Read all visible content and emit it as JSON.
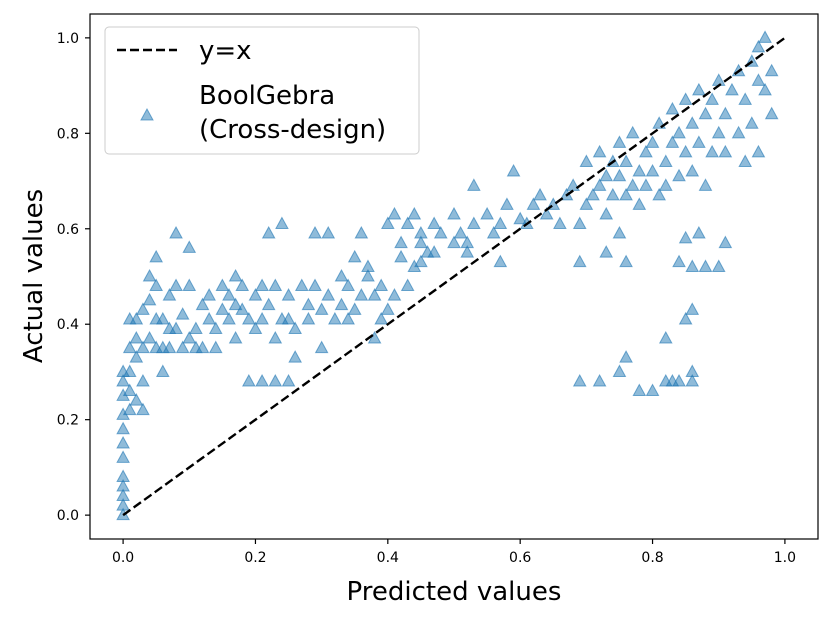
{
  "chart_data": {
    "type": "scatter",
    "xlabel": "Predicted values",
    "ylabel": "Actual values",
    "xlim": [
      -0.05,
      1.05
    ],
    "ylim": [
      -0.05,
      1.05
    ],
    "x_ticks": [
      "0.0",
      "0.2",
      "0.4",
      "0.6",
      "0.8",
      "1.0"
    ],
    "y_ticks": [
      "0.0",
      "0.2",
      "0.4",
      "0.6",
      "0.8",
      "1.0"
    ],
    "grid": false,
    "legend_position": "top-left",
    "colors": {
      "scatter": "#1f77b4",
      "line": "#000000"
    },
    "line_series": {
      "name": "y=x",
      "style": "dashed",
      "x": [
        0,
        1
      ],
      "y": [
        0,
        1
      ]
    },
    "scatter_series": {
      "name_lines": [
        "BoolGebra",
        "(Cross-design)"
      ],
      "marker": "triangle-up",
      "alpha": 0.5,
      "points": [
        [
          0.0,
          0.0
        ],
        [
          0.0,
          0.02
        ],
        [
          0.0,
          0.04
        ],
        [
          0.0,
          0.06
        ],
        [
          0.0,
          0.08
        ],
        [
          0.0,
          0.12
        ],
        [
          0.0,
          0.15
        ],
        [
          0.0,
          0.18
        ],
        [
          0.0,
          0.21
        ],
        [
          0.0,
          0.25
        ],
        [
          0.0,
          0.28
        ],
        [
          0.0,
          0.3
        ],
        [
          0.01,
          0.22
        ],
        [
          0.01,
          0.26
        ],
        [
          0.01,
          0.3
        ],
        [
          0.01,
          0.35
        ],
        [
          0.01,
          0.41
        ],
        [
          0.02,
          0.24
        ],
        [
          0.02,
          0.33
        ],
        [
          0.02,
          0.37
        ],
        [
          0.02,
          0.41
        ],
        [
          0.03,
          0.28
        ],
        [
          0.03,
          0.22
        ],
        [
          0.03,
          0.35
        ],
        [
          0.03,
          0.43
        ],
        [
          0.04,
          0.37
        ],
        [
          0.04,
          0.5
        ],
        [
          0.04,
          0.45
        ],
        [
          0.05,
          0.41
        ],
        [
          0.05,
          0.35
        ],
        [
          0.05,
          0.48
        ],
        [
          0.05,
          0.54
        ],
        [
          0.06,
          0.3
        ],
        [
          0.06,
          0.35
        ],
        [
          0.06,
          0.41
        ],
        [
          0.07,
          0.39
        ],
        [
          0.07,
          0.46
        ],
        [
          0.07,
          0.35
        ],
        [
          0.08,
          0.48
        ],
        [
          0.08,
          0.39
        ],
        [
          0.08,
          0.59
        ],
        [
          0.09,
          0.35
        ],
        [
          0.09,
          0.42
        ],
        [
          0.1,
          0.37
        ],
        [
          0.1,
          0.56
        ],
        [
          0.1,
          0.48
        ],
        [
          0.11,
          0.39
        ],
        [
          0.11,
          0.35
        ],
        [
          0.12,
          0.44
        ],
        [
          0.12,
          0.35
        ],
        [
          0.13,
          0.41
        ],
        [
          0.13,
          0.46
        ],
        [
          0.14,
          0.35
        ],
        [
          0.14,
          0.39
        ],
        [
          0.15,
          0.43
        ],
        [
          0.15,
          0.48
        ],
        [
          0.16,
          0.46
        ],
        [
          0.16,
          0.41
        ],
        [
          0.17,
          0.5
        ],
        [
          0.17,
          0.44
        ],
        [
          0.17,
          0.37
        ],
        [
          0.18,
          0.43
        ],
        [
          0.18,
          0.48
        ],
        [
          0.19,
          0.28
        ],
        [
          0.19,
          0.41
        ],
        [
          0.2,
          0.46
        ],
        [
          0.2,
          0.39
        ],
        [
          0.21,
          0.48
        ],
        [
          0.21,
          0.41
        ],
        [
          0.22,
          0.59
        ],
        [
          0.22,
          0.44
        ],
        [
          0.23,
          0.37
        ],
        [
          0.23,
          0.48
        ],
        [
          0.24,
          0.41
        ],
        [
          0.24,
          0.61
        ],
        [
          0.25,
          0.28
        ],
        [
          0.25,
          0.46
        ],
        [
          0.26,
          0.33
        ],
        [
          0.26,
          0.39
        ],
        [
          0.27,
          0.48
        ],
        [
          0.25,
          0.41
        ],
        [
          0.21,
          0.28
        ],
        [
          0.23,
          0.28
        ],
        [
          0.28,
          0.44
        ],
        [
          0.28,
          0.41
        ],
        [
          0.29,
          0.59
        ],
        [
          0.29,
          0.48
        ],
        [
          0.3,
          0.43
        ],
        [
          0.3,
          0.35
        ],
        [
          0.31,
          0.46
        ],
        [
          0.31,
          0.59
        ],
        [
          0.32,
          0.41
        ],
        [
          0.33,
          0.44
        ],
        [
          0.33,
          0.5
        ],
        [
          0.34,
          0.48
        ],
        [
          0.34,
          0.41
        ],
        [
          0.35,
          0.54
        ],
        [
          0.35,
          0.43
        ],
        [
          0.36,
          0.46
        ],
        [
          0.36,
          0.59
        ],
        [
          0.37,
          0.5
        ],
        [
          0.37,
          0.52
        ],
        [
          0.38,
          0.46
        ],
        [
          0.38,
          0.37
        ],
        [
          0.39,
          0.41
        ],
        [
          0.39,
          0.48
        ],
        [
          0.4,
          0.61
        ],
        [
          0.4,
          0.43
        ],
        [
          0.41,
          0.63
        ],
        [
          0.41,
          0.46
        ],
        [
          0.42,
          0.57
        ],
        [
          0.42,
          0.54
        ],
        [
          0.43,
          0.48
        ],
        [
          0.43,
          0.61
        ],
        [
          0.44,
          0.52
        ],
        [
          0.44,
          0.63
        ],
        [
          0.45,
          0.59
        ],
        [
          0.45,
          0.57
        ],
        [
          0.46,
          0.55
        ],
        [
          0.47,
          0.61
        ],
        [
          0.48,
          0.59
        ],
        [
          0.5,
          0.57
        ],
        [
          0.51,
          0.59
        ],
        [
          0.52,
          0.55
        ],
        [
          0.53,
          0.61
        ],
        [
          0.55,
          0.63
        ],
        [
          0.56,
          0.59
        ],
        [
          0.57,
          0.61
        ],
        [
          0.58,
          0.65
        ],
        [
          0.59,
          0.72
        ],
        [
          0.53,
          0.69
        ],
        [
          0.45,
          0.53
        ],
        [
          0.47,
          0.55
        ],
        [
          0.57,
          0.53
        ],
        [
          0.5,
          0.63
        ],
        [
          0.52,
          0.57
        ],
        [
          0.6,
          0.62
        ],
        [
          0.61,
          0.61
        ],
        [
          0.62,
          0.65
        ],
        [
          0.63,
          0.67
        ],
        [
          0.64,
          0.63
        ],
        [
          0.65,
          0.65
        ],
        [
          0.66,
          0.61
        ],
        [
          0.67,
          0.67
        ],
        [
          0.68,
          0.69
        ],
        [
          0.69,
          0.61
        ],
        [
          0.69,
          0.53
        ],
        [
          0.7,
          0.65
        ],
        [
          0.7,
          0.74
        ],
        [
          0.71,
          0.67
        ],
        [
          0.72,
          0.69
        ],
        [
          0.72,
          0.76
        ],
        [
          0.73,
          0.71
        ],
        [
          0.73,
          0.63
        ],
        [
          0.74,
          0.67
        ],
        [
          0.74,
          0.74
        ],
        [
          0.75,
          0.71
        ],
        [
          0.75,
          0.78
        ],
        [
          0.76,
          0.67
        ],
        [
          0.76,
          0.74
        ],
        [
          0.77,
          0.69
        ],
        [
          0.77,
          0.8
        ],
        [
          0.78,
          0.72
        ],
        [
          0.78,
          0.65
        ],
        [
          0.79,
          0.76
        ],
        [
          0.79,
          0.69
        ],
        [
          0.8,
          0.78
        ],
        [
          0.8,
          0.72
        ],
        [
          0.81,
          0.67
        ],
        [
          0.81,
          0.82
        ],
        [
          0.82,
          0.74
        ],
        [
          0.82,
          0.69
        ],
        [
          0.83,
          0.78
        ],
        [
          0.83,
          0.85
        ],
        [
          0.84,
          0.71
        ],
        [
          0.84,
          0.8
        ],
        [
          0.85,
          0.87
        ],
        [
          0.85,
          0.76
        ],
        [
          0.86,
          0.82
        ],
        [
          0.86,
          0.72
        ],
        [
          0.87,
          0.89
        ],
        [
          0.87,
          0.78
        ],
        [
          0.88,
          0.69
        ],
        [
          0.88,
          0.84
        ],
        [
          0.89,
          0.76
        ],
        [
          0.89,
          0.87
        ],
        [
          0.9,
          0.8
        ],
        [
          0.9,
          0.91
        ],
        [
          0.91,
          0.84
        ],
        [
          0.91,
          0.76
        ],
        [
          0.92,
          0.89
        ],
        [
          0.93,
          0.8
        ],
        [
          0.93,
          0.93
        ],
        [
          0.94,
          0.87
        ],
        [
          0.95,
          0.95
        ],
        [
          0.95,
          0.82
        ],
        [
          0.96,
          0.91
        ],
        [
          0.96,
          0.98
        ],
        [
          0.97,
          0.89
        ],
        [
          0.97,
          1.0
        ],
        [
          0.98,
          0.93
        ],
        [
          0.98,
          0.84
        ],
        [
          0.94,
          0.74
        ],
        [
          0.96,
          0.76
        ],
        [
          0.73,
          0.55
        ],
        [
          0.75,
          0.59
        ],
        [
          0.76,
          0.53
        ],
        [
          0.84,
          0.53
        ],
        [
          0.85,
          0.41
        ],
        [
          0.86,
          0.3
        ],
        [
          0.86,
          0.52
        ],
        [
          0.88,
          0.52
        ],
        [
          0.9,
          0.52
        ],
        [
          0.91,
          0.57
        ],
        [
          0.87,
          0.59
        ],
        [
          0.85,
          0.58
        ],
        [
          0.69,
          0.28
        ],
        [
          0.72,
          0.28
        ],
        [
          0.75,
          0.3
        ],
        [
          0.76,
          0.33
        ],
        [
          0.78,
          0.26
        ],
        [
          0.8,
          0.26
        ],
        [
          0.82,
          0.28
        ],
        [
          0.82,
          0.37
        ],
        [
          0.83,
          0.28
        ],
        [
          0.84,
          0.28
        ],
        [
          0.86,
          0.43
        ],
        [
          0.86,
          0.28
        ]
      ]
    }
  }
}
